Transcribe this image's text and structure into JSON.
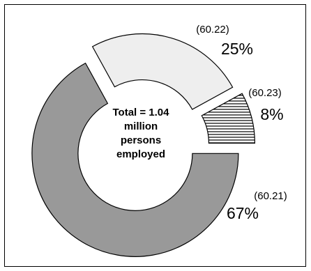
{
  "chart_data": {
    "type": "pie",
    "style": "exploded donut",
    "slices": [
      {
        "code": "(60.21)",
        "value": 67,
        "label": "67%",
        "fill": "#999999",
        "pattern": "solid"
      },
      {
        "code": "(60.22)",
        "value": 25,
        "label": "25%",
        "fill": "#eeeeee",
        "pattern": "solid"
      },
      {
        "code": "(60.23)",
        "value": 8,
        "label": "8%",
        "fill": "#ffffff",
        "pattern": "horizontal-lines"
      }
    ],
    "center_text": [
      "Total = 1.04",
      "million",
      "persons",
      "employed"
    ],
    "outline_color": "#000000"
  }
}
